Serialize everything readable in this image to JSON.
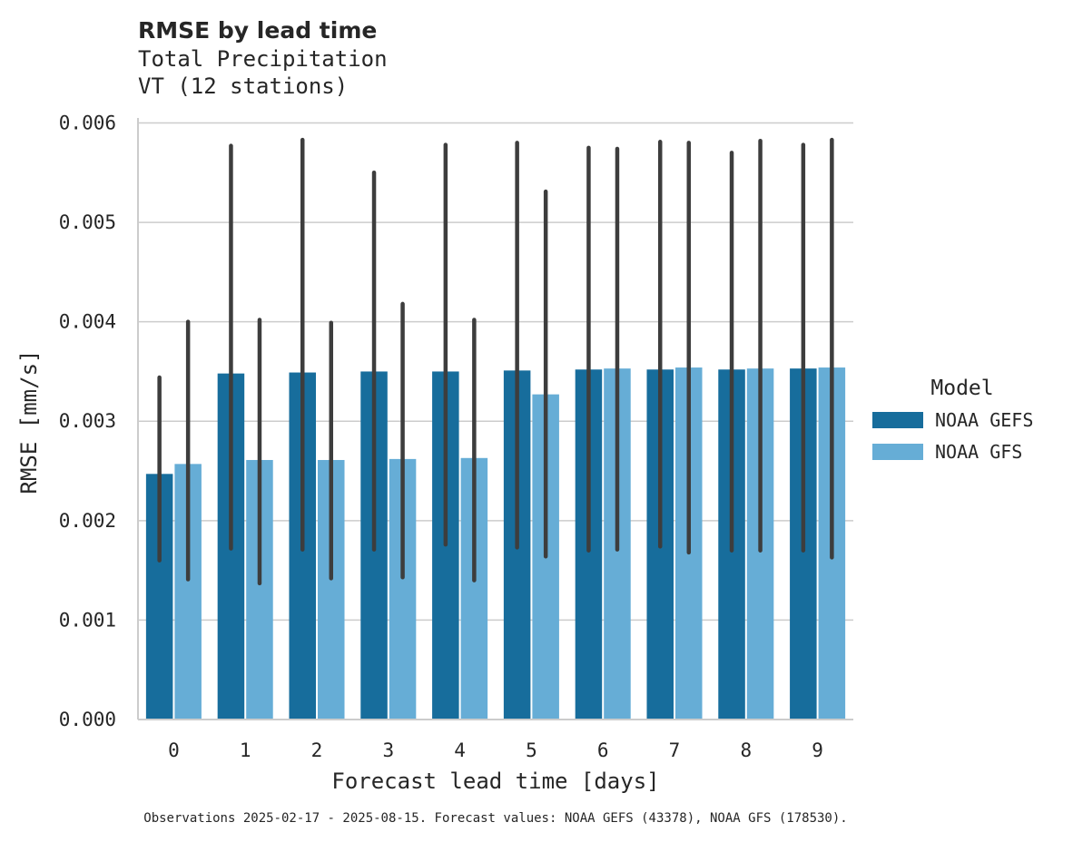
{
  "chart_data": {
    "type": "bar",
    "title": "RMSE by lead time",
    "subtitle_lines": [
      "Total Precipitation",
      "VT (12 stations)"
    ],
    "xlabel": "Forecast lead time [days]",
    "ylabel": "RMSE [mm/s]",
    "ylim": [
      0,
      0.00605
    ],
    "yticks": [
      0,
      0.001,
      0.002,
      0.003,
      0.004,
      0.005,
      0.006
    ],
    "ytick_labels": [
      "0.000",
      "0.001",
      "0.002",
      "0.003",
      "0.004",
      "0.005",
      "0.006"
    ],
    "categories": [
      "0",
      "1",
      "2",
      "3",
      "4",
      "5",
      "6",
      "7",
      "8",
      "9"
    ],
    "grid": "horizontal",
    "legend": {
      "title": "Model",
      "placement": "right"
    },
    "series": [
      {
        "name": "NOAA GEFS",
        "color": "#176d9c",
        "values": [
          0.00247,
          0.00348,
          0.00349,
          0.0035,
          0.0035,
          0.00351,
          0.00352,
          0.00352,
          0.00352,
          0.00353
        ],
        "ci_low": [
          0.0016,
          0.00172,
          0.00171,
          0.00171,
          0.00176,
          0.00173,
          0.0017,
          0.00174,
          0.0017,
          0.0017
        ],
        "ci_high": [
          0.00344,
          0.00577,
          0.00583,
          0.0055,
          0.00578,
          0.0058,
          0.00575,
          0.00581,
          0.0057,
          0.00578
        ]
      },
      {
        "name": "NOAA GFS",
        "color": "#66add6",
        "values": [
          0.00257,
          0.00261,
          0.00261,
          0.00262,
          0.00263,
          0.00327,
          0.00353,
          0.00354,
          0.00353,
          0.00354
        ],
        "ci_low": [
          0.00141,
          0.00137,
          0.00142,
          0.00143,
          0.0014,
          0.00164,
          0.00171,
          0.00168,
          0.0017,
          0.00163
        ],
        "ci_high": [
          0.004,
          0.00402,
          0.00399,
          0.00418,
          0.00402,
          0.00531,
          0.00574,
          0.0058,
          0.00582,
          0.00583
        ]
      }
    ],
    "footnote": "Observations 2025-02-17 - 2025-08-15. Forecast values: NOAA GEFS (43378), NOAA GFS (178530)."
  }
}
